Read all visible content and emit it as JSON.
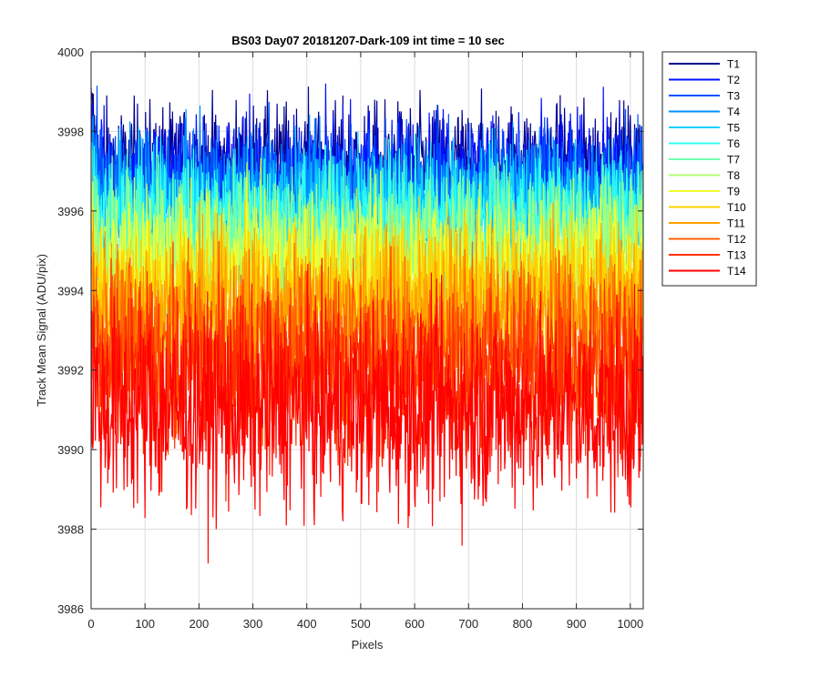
{
  "chart_data": {
    "type": "line",
    "title": "BS03 Day07 20181207-Dark-109 int time = 10 sec",
    "xlabel": "Pixels",
    "ylabel": "Track Mean Signal (ADU/pix)",
    "xlim": [
      0,
      1024
    ],
    "ylim": [
      3986,
      4000
    ],
    "x_ticks": [
      0,
      100,
      200,
      300,
      400,
      500,
      600,
      700,
      800,
      900,
      1000
    ],
    "y_ticks": [
      3986,
      3988,
      3990,
      3992,
      3994,
      3996,
      3998,
      4000
    ],
    "grid": true,
    "legend_position": "outside-top-right",
    "x_points": 1024,
    "series": [
      {
        "name": "T1",
        "mean": 3997.1,
        "spread": 0.8,
        "color": "#00008f"
      },
      {
        "name": "T2",
        "mean": 3996.9,
        "spread": 0.8,
        "color": "#0010ff"
      },
      {
        "name": "T3",
        "mean": 3996.6,
        "spread": 0.8,
        "color": "#0050ff"
      },
      {
        "name": "T4",
        "mean": 3996.3,
        "spread": 0.8,
        "color": "#0090ff"
      },
      {
        "name": "T5",
        "mean": 3996.0,
        "spread": 0.8,
        "color": "#10d0ff"
      },
      {
        "name": "T6",
        "mean": 3995.7,
        "spread": 0.9,
        "color": "#30ffef"
      },
      {
        "name": "T7",
        "mean": 3995.3,
        "spread": 0.9,
        "color": "#70ffaf"
      },
      {
        "name": "T8",
        "mean": 3994.9,
        "spread": 0.9,
        "color": "#b0ff70"
      },
      {
        "name": "T9",
        "mean": 3994.4,
        "spread": 1.0,
        "color": "#f0ff30"
      },
      {
        "name": "T10",
        "mean": 3993.9,
        "spread": 1.0,
        "color": "#ffd000"
      },
      {
        "name": "T11",
        "mean": 3993.3,
        "spread": 1.1,
        "color": "#ffa000"
      },
      {
        "name": "T12",
        "mean": 3992.6,
        "spread": 1.1,
        "color": "#ff6000"
      },
      {
        "name": "T13",
        "mean": 3991.9,
        "spread": 1.2,
        "color": "#ff3000"
      },
      {
        "name": "T14",
        "mean": 3991.0,
        "spread": 1.3,
        "color": "#ff0000"
      }
    ]
  }
}
